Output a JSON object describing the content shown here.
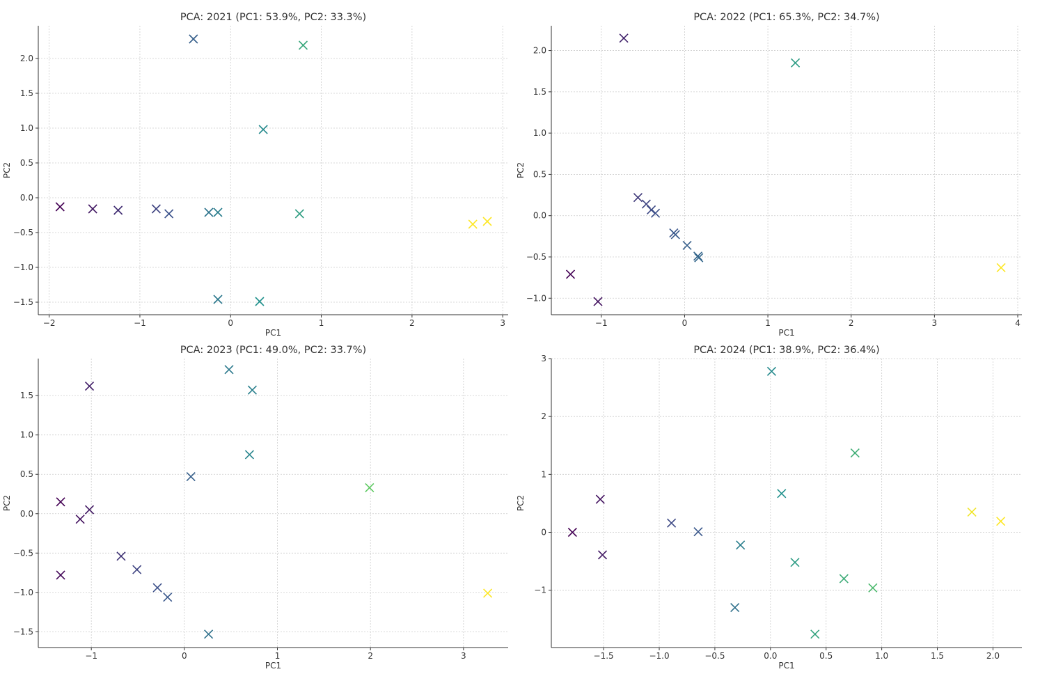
{
  "colormap": [
    "#440154",
    "#3b528b",
    "#21918c",
    "#5ec962",
    "#fde725"
  ],
  "chart_data": [
    {
      "type": "scatter",
      "title": "PCA: 2021 (PC1: 53.9%, PC2: 33.3%)",
      "xlabel": "PC1",
      "ylabel": "PC2",
      "xlim": [
        -2.12,
        3.06
      ],
      "ylim": [
        -1.68,
        2.47
      ],
      "xticks": [
        -2,
        -1,
        0,
        1,
        2,
        3
      ],
      "yticks": [
        -1.5,
        -1.0,
        -0.5,
        0.0,
        0.5,
        1.0,
        1.5,
        2.0
      ],
      "xtick_labels": [
        "−2",
        "−1",
        "0",
        "1",
        "2",
        "3"
      ],
      "ytick_labels": [
        "−1.5",
        "−1.0",
        "−0.5",
        "0.0",
        "0.5",
        "1.0",
        "1.5",
        "2.0"
      ],
      "grid": true,
      "marker": "x",
      "points": [
        {
          "x": -1.88,
          "y": -0.13,
          "c": 0.0
        },
        {
          "x": -1.52,
          "y": -0.16,
          "c": 0.07
        },
        {
          "x": -1.24,
          "y": -0.18,
          "c": 0.13
        },
        {
          "x": -0.82,
          "y": -0.16,
          "c": 0.2
        },
        {
          "x": -0.68,
          "y": -0.23,
          "c": 0.25
        },
        {
          "x": -0.41,
          "y": 2.28,
          "c": 0.3
        },
        {
          "x": -0.24,
          "y": -0.21,
          "c": 0.38
        },
        {
          "x": -0.14,
          "y": -0.21,
          "c": 0.42
        },
        {
          "x": -0.14,
          "y": -1.46,
          "c": 0.4
        },
        {
          "x": 0.36,
          "y": 0.98,
          "c": 0.47
        },
        {
          "x": 0.32,
          "y": -1.49,
          "c": 0.5
        },
        {
          "x": 0.76,
          "y": -0.23,
          "c": 0.56
        },
        {
          "x": 0.8,
          "y": 2.19,
          "c": 0.6
        },
        {
          "x": 2.67,
          "y": -0.38,
          "c": 1.0
        },
        {
          "x": 2.83,
          "y": -0.34,
          "c": 1.0
        }
      ]
    },
    {
      "type": "scatter",
      "title": "PCA: 2022 (PC1: 65.3%, PC2: 34.7%)",
      "xlabel": "PC1",
      "ylabel": "PC2",
      "xlim": [
        -1.6,
        4.05
      ],
      "ylim": [
        -1.2,
        2.3
      ],
      "xticks": [
        -1,
        0,
        1,
        2,
        3,
        4
      ],
      "yticks": [
        -1.0,
        -0.5,
        0.0,
        0.5,
        1.0,
        1.5,
        2.0
      ],
      "xtick_labels": [
        "−1",
        "0",
        "1",
        "2",
        "3",
        "4"
      ],
      "ytick_labels": [
        "−1.0",
        "−0.5",
        "0.0",
        "0.5",
        "1.0",
        "1.5",
        "2.0"
      ],
      "grid": true,
      "marker": "x",
      "points": [
        {
          "x": -1.37,
          "y": -0.71,
          "c": 0.0
        },
        {
          "x": -1.04,
          "y": -1.04,
          "c": 0.05
        },
        {
          "x": -0.73,
          "y": 2.15,
          "c": 0.1
        },
        {
          "x": -0.56,
          "y": 0.22,
          "c": 0.17
        },
        {
          "x": -0.46,
          "y": 0.14,
          "c": 0.2
        },
        {
          "x": -0.4,
          "y": 0.07,
          "c": 0.22
        },
        {
          "x": -0.35,
          "y": 0.03,
          "c": 0.24
        },
        {
          "x": -0.13,
          "y": -0.21,
          "c": 0.26
        },
        {
          "x": -0.11,
          "y": -0.23,
          "c": 0.28
        },
        {
          "x": 0.03,
          "y": -0.36,
          "c": 0.3
        },
        {
          "x": 0.16,
          "y": -0.49,
          "c": 0.32
        },
        {
          "x": 0.17,
          "y": -0.51,
          "c": 0.33
        },
        {
          "x": 1.33,
          "y": 1.85,
          "c": 0.55
        },
        {
          "x": 3.8,
          "y": -0.63,
          "c": 1.0
        }
      ]
    },
    {
      "type": "scatter",
      "title": "PCA: 2023 (PC1: 49.0%, PC2: 33.7%)",
      "xlabel": "PC1",
      "ylabel": "PC2",
      "xlim": [
        -1.57,
        3.48
      ],
      "ylim": [
        -1.7,
        1.97
      ],
      "xticks": [
        -1,
        0,
        1,
        2,
        3
      ],
      "yticks": [
        -1.5,
        -1.0,
        -0.5,
        0.0,
        0.5,
        1.0,
        1.5
      ],
      "xtick_labels": [
        "−1",
        "0",
        "1",
        "2",
        "3"
      ],
      "ytick_labels": [
        "−1.5",
        "−1.0",
        "−0.5",
        "0.0",
        "0.5",
        "1.0",
        "1.5"
      ],
      "grid": true,
      "marker": "x",
      "points": [
        {
          "x": -1.33,
          "y": 0.15,
          "c": 0.0
        },
        {
          "x": -1.33,
          "y": -0.78,
          "c": 0.02
        },
        {
          "x": -1.12,
          "y": -0.07,
          "c": 0.05
        },
        {
          "x": -1.02,
          "y": 0.05,
          "c": 0.07
        },
        {
          "x": -1.02,
          "y": 1.62,
          "c": 0.09
        },
        {
          "x": -0.68,
          "y": -0.54,
          "c": 0.15
        },
        {
          "x": -0.51,
          "y": -0.71,
          "c": 0.2
        },
        {
          "x": -0.29,
          "y": -0.94,
          "c": 0.24
        },
        {
          "x": -0.18,
          "y": -1.06,
          "c": 0.27
        },
        {
          "x": 0.07,
          "y": 0.47,
          "c": 0.3
        },
        {
          "x": 0.26,
          "y": -1.53,
          "c": 0.37
        },
        {
          "x": 0.48,
          "y": 1.83,
          "c": 0.4
        },
        {
          "x": 0.7,
          "y": 0.75,
          "c": 0.45
        },
        {
          "x": 0.73,
          "y": 1.57,
          "c": 0.43
        },
        {
          "x": 1.99,
          "y": 0.33,
          "c": 0.75
        },
        {
          "x": 3.26,
          "y": -1.01,
          "c": 1.0
        }
      ]
    },
    {
      "type": "scatter",
      "title": "PCA: 2024 (PC1: 38.9%, PC2: 36.4%)",
      "xlabel": "PC1",
      "ylabel": "PC2",
      "xlim": [
        -1.97,
        2.26
      ],
      "ylim": [
        -1.99,
        3.0
      ],
      "xticks": [
        -1.5,
        -1.0,
        -0.5,
        0.0,
        0.5,
        1.0,
        1.5,
        2.0
      ],
      "yticks": [
        -1,
        0,
        1,
        2,
        3
      ],
      "xtick_labels": [
        "−1.5",
        "−1.0",
        "−0.5",
        "0.0",
        "0.5",
        "1.0",
        "1.5",
        "2.0"
      ],
      "ytick_labels": [
        "−1",
        "0",
        "1",
        "2",
        "3"
      ],
      "grid": true,
      "marker": "x",
      "points": [
        {
          "x": -1.78,
          "y": 0.0,
          "c": 0.0
        },
        {
          "x": -1.53,
          "y": 0.57,
          "c": 0.05
        },
        {
          "x": -1.51,
          "y": -0.39,
          "c": 0.07
        },
        {
          "x": -0.89,
          "y": 0.16,
          "c": 0.22
        },
        {
          "x": -0.65,
          "y": 0.01,
          "c": 0.27
        },
        {
          "x": -0.32,
          "y": -1.3,
          "c": 0.37
        },
        {
          "x": -0.27,
          "y": -0.22,
          "c": 0.42
        },
        {
          "x": 0.01,
          "y": 2.78,
          "c": 0.47
        },
        {
          "x": 0.1,
          "y": 0.67,
          "c": 0.5
        },
        {
          "x": 0.22,
          "y": -0.52,
          "c": 0.55
        },
        {
          "x": 0.4,
          "y": -1.76,
          "c": 0.58
        },
        {
          "x": 0.66,
          "y": -0.8,
          "c": 0.62
        },
        {
          "x": 0.76,
          "y": 1.37,
          "c": 0.63
        },
        {
          "x": 0.92,
          "y": -0.96,
          "c": 0.68
        },
        {
          "x": 1.81,
          "y": 0.35,
          "c": 0.98
        },
        {
          "x": 2.07,
          "y": 0.19,
          "c": 1.0
        }
      ]
    }
  ]
}
